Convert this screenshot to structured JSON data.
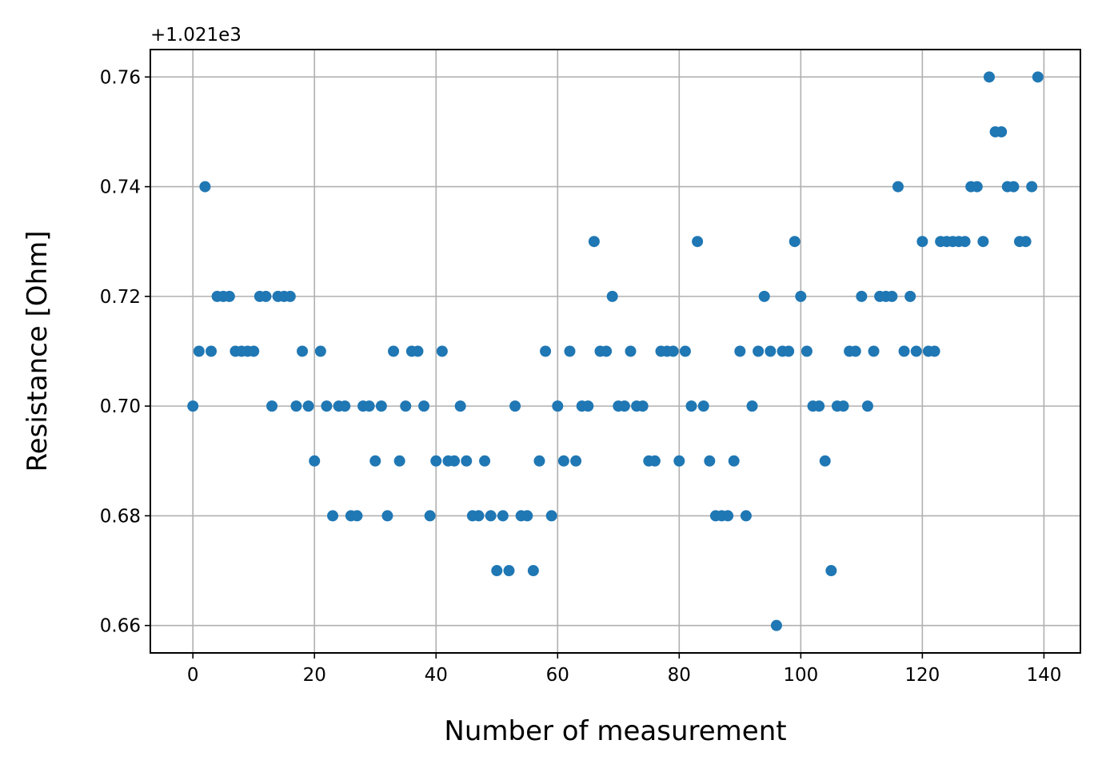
{
  "chart_data": {
    "type": "scatter",
    "title": "",
    "xlabel": "Number of measurement",
    "ylabel": "Resistance [Ohm]",
    "y_offset_label": "+1.021e3",
    "xlim": [
      -7,
      146
    ],
    "ylim": [
      0.655,
      0.765
    ],
    "xticks": [
      0,
      20,
      40,
      60,
      80,
      100,
      120,
      140
    ],
    "xtick_labels": [
      "0",
      "20",
      "40",
      "60",
      "80",
      "100",
      "120",
      "140"
    ],
    "yticks": [
      0.66,
      0.68,
      0.7,
      0.72,
      0.74,
      0.76
    ],
    "ytick_labels": [
      "0.66",
      "0.68",
      "0.70",
      "0.72",
      "0.74",
      "0.76"
    ],
    "grid": true,
    "marker_color": "#1f77b4",
    "x": [
      0,
      1,
      2,
      3,
      4,
      5,
      6,
      7,
      8,
      9,
      10,
      11,
      12,
      13,
      14,
      15,
      16,
      17,
      18,
      19,
      20,
      21,
      22,
      23,
      24,
      25,
      26,
      27,
      28,
      29,
      30,
      31,
      32,
      33,
      34,
      35,
      36,
      37,
      38,
      39,
      40,
      41,
      42,
      43,
      44,
      45,
      46,
      47,
      48,
      49,
      50,
      51,
      52,
      53,
      54,
      55,
      56,
      57,
      58,
      59,
      60,
      61,
      62,
      63,
      64,
      65,
      66,
      67,
      68,
      69,
      70,
      71,
      72,
      73,
      74,
      75,
      76,
      77,
      78,
      79,
      80,
      81,
      82,
      83,
      84,
      85,
      86,
      87,
      88,
      89,
      90,
      91,
      92,
      93,
      94,
      95,
      96,
      97,
      98,
      99,
      100,
      101,
      102,
      103,
      104,
      105,
      106,
      107,
      108,
      109,
      110,
      111,
      112,
      113,
      114,
      115,
      116,
      117,
      118,
      119,
      120,
      121,
      122,
      123,
      124,
      125,
      126,
      127,
      128,
      129,
      130,
      131,
      132,
      133,
      134,
      135,
      136,
      137,
      138,
      139
    ],
    "y": [
      0.7,
      0.71,
      0.74,
      0.71,
      0.72,
      0.72,
      0.72,
      0.71,
      0.71,
      0.71,
      0.71,
      0.72,
      0.72,
      0.7,
      0.72,
      0.72,
      0.72,
      0.7,
      0.71,
      0.7,
      0.69,
      0.71,
      0.7,
      0.68,
      0.7,
      0.7,
      0.68,
      0.68,
      0.7,
      0.7,
      0.69,
      0.7,
      0.68,
      0.71,
      0.69,
      0.7,
      0.71,
      0.71,
      0.7,
      0.68,
      0.69,
      0.71,
      0.69,
      0.69,
      0.7,
      0.69,
      0.68,
      0.68,
      0.69,
      0.68,
      0.67,
      0.68,
      0.67,
      0.7,
      0.68,
      0.68,
      0.67,
      0.69,
      0.71,
      0.68,
      0.7,
      0.69,
      0.71,
      0.69,
      0.7,
      0.7,
      0.73,
      0.71,
      0.71,
      0.72,
      0.7,
      0.7,
      0.71,
      0.7,
      0.7,
      0.69,
      0.69,
      0.71,
      0.71,
      0.71,
      0.69,
      0.71,
      0.7,
      0.73,
      0.7,
      0.69,
      0.68,
      0.68,
      0.68,
      0.69,
      0.71,
      0.68,
      0.7,
      0.71,
      0.72,
      0.71,
      0.66,
      0.71,
      0.71,
      0.73,
      0.72,
      0.71,
      0.7,
      0.7,
      0.69,
      0.67,
      0.7,
      0.7,
      0.71,
      0.71,
      0.72,
      0.7,
      0.71,
      0.72,
      0.72,
      0.72,
      0.74,
      0.71,
      0.72,
      0.71,
      0.73,
      0.71,
      0.71,
      0.73,
      0.73,
      0.73,
      0.73,
      0.73,
      0.74,
      0.74,
      0.73,
      0.76,
      0.75,
      0.75,
      0.74,
      0.74,
      0.73,
      0.73,
      0.74,
      0.76
    ]
  }
}
